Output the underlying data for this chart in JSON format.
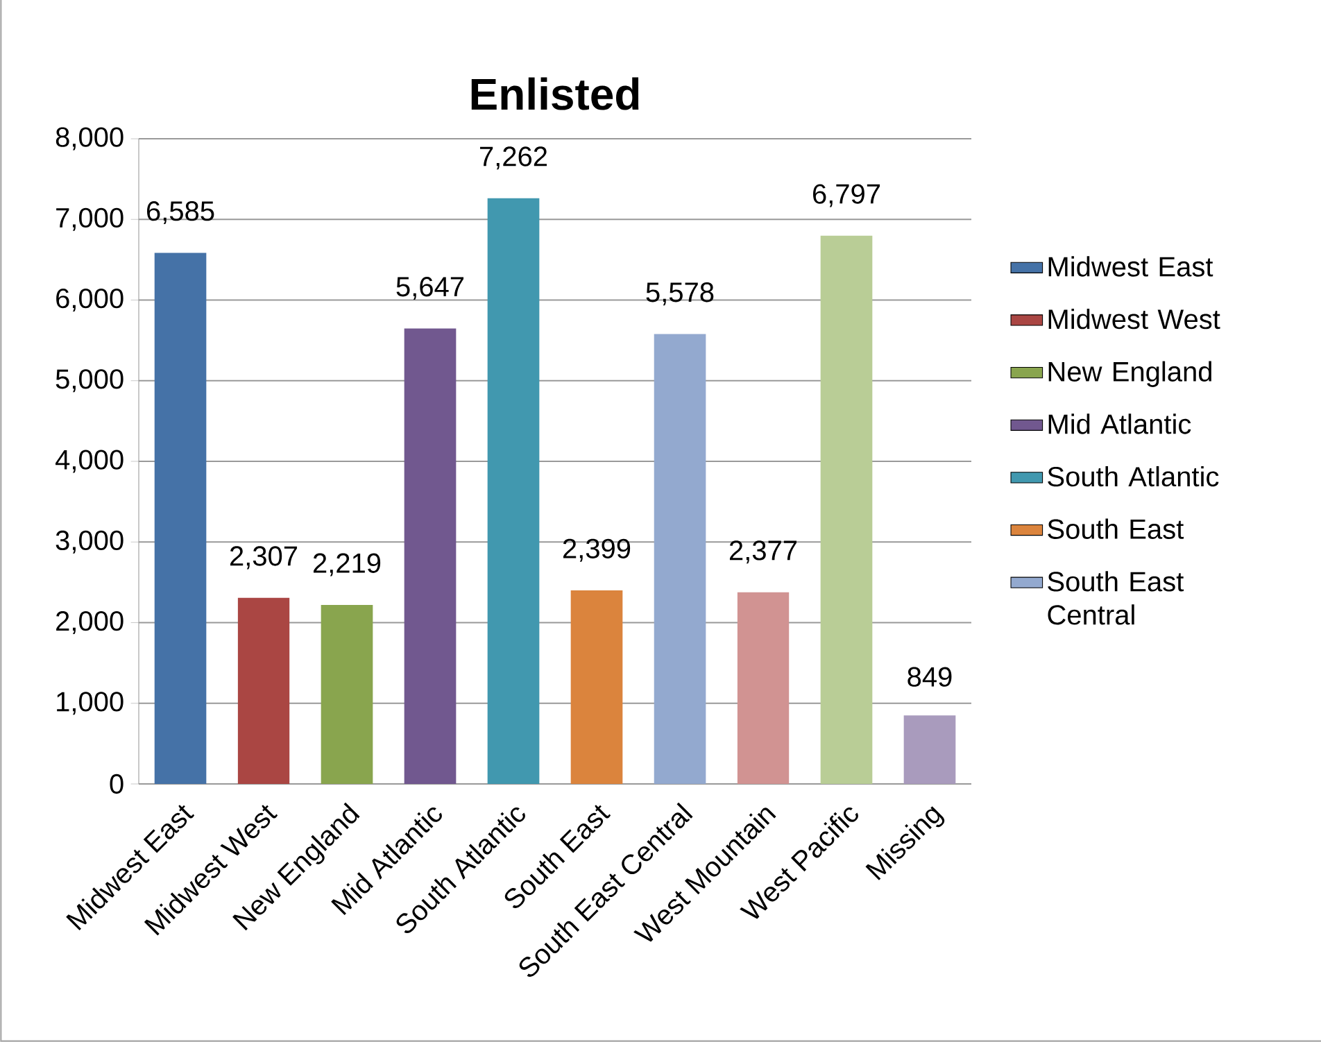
{
  "chart_data": {
    "type": "bar",
    "title": "Enlisted",
    "categories": [
      "Midwest East",
      "Midwest West",
      "New England",
      "Mid Atlantic",
      "South Atlantic",
      "South East",
      "South East Central",
      "West Mountain",
      "West Pacific",
      "Missing"
    ],
    "series": [
      {
        "name": "Midwest East",
        "color": "#4572a7",
        "values": [
          6585,
          null,
          null,
          null,
          null,
          null,
          null,
          null,
          null,
          null
        ],
        "value_labels": [
          "6,585",
          null,
          null,
          null,
          null,
          null,
          null,
          null,
          null,
          null
        ]
      },
      {
        "name": "Midwest West",
        "color": "#aa4643",
        "values": [
          null,
          2307,
          null,
          null,
          null,
          null,
          null,
          null,
          null,
          null
        ],
        "value_labels": [
          null,
          "2,307",
          null,
          null,
          null,
          null,
          null,
          null,
          null,
          null
        ]
      },
      {
        "name": "New England",
        "color": "#89a54e",
        "values": [
          null,
          null,
          2219,
          null,
          null,
          null,
          null,
          null,
          null,
          null
        ],
        "value_labels": [
          null,
          null,
          "2,219",
          null,
          null,
          null,
          null,
          null,
          null,
          null
        ]
      },
      {
        "name": "Mid Atlantic",
        "color": "#71588f",
        "values": [
          null,
          null,
          null,
          5647,
          null,
          null,
          null,
          null,
          null,
          null
        ],
        "value_labels": [
          null,
          null,
          null,
          "5,647",
          null,
          null,
          null,
          null,
          null,
          null
        ]
      },
      {
        "name": "South Atlantic",
        "color": "#4198af",
        "values": [
          null,
          null,
          null,
          null,
          7262,
          null,
          null,
          null,
          null,
          null
        ],
        "value_labels": [
          null,
          null,
          null,
          null,
          "7,262",
          null,
          null,
          null,
          null,
          null
        ]
      },
      {
        "name": "South East",
        "color": "#db843d",
        "values": [
          null,
          null,
          null,
          null,
          null,
          2399,
          null,
          null,
          null,
          null
        ],
        "value_labels": [
          null,
          null,
          null,
          null,
          null,
          "2,399",
          null,
          null,
          null,
          null
        ]
      },
      {
        "name": "South East Central",
        "color": "#93a9cf",
        "values": [
          null,
          null,
          null,
          null,
          null,
          null,
          5578,
          null,
          null,
          null
        ],
        "value_labels": [
          null,
          null,
          null,
          null,
          null,
          null,
          "5,578",
          null,
          null,
          null
        ]
      },
      {
        "color": "#d19392",
        "values": [
          null,
          null,
          null,
          null,
          null,
          null,
          null,
          2377,
          null,
          null
        ],
        "value_labels": [
          null,
          null,
          null,
          null,
          null,
          null,
          null,
          "2,377",
          null,
          null
        ]
      },
      {
        "color": "#b9cd96",
        "values": [
          null,
          null,
          null,
          null,
          null,
          null,
          null,
          null,
          6797,
          null
        ],
        "value_labels": [
          null,
          null,
          null,
          null,
          null,
          null,
          null,
          null,
          "6,797",
          null
        ]
      },
      {
        "color": "#a99bbd",
        "values": [
          null,
          null,
          null,
          null,
          null,
          null,
          null,
          null,
          null,
          849
        ],
        "value_labels": [
          null,
          null,
          null,
          null,
          null,
          null,
          null,
          null,
          null,
          "849"
        ]
      }
    ],
    "ylim": [
      0,
      8000
    ],
    "yticks": [
      {
        "value": 0,
        "label": "0"
      },
      {
        "value": 1000,
        "label": "1,000"
      },
      {
        "value": 2000,
        "label": "2,000"
      },
      {
        "value": 3000,
        "label": "3,000"
      },
      {
        "value": 4000,
        "label": "4,000"
      },
      {
        "value": 5000,
        "label": "5,000"
      },
      {
        "value": 6000,
        "label": "6,000"
      },
      {
        "value": 7000,
        "label": "7,000"
      },
      {
        "value": 8000,
        "label": "8,000"
      }
    ],
    "grid": "y",
    "legend": "right"
  }
}
